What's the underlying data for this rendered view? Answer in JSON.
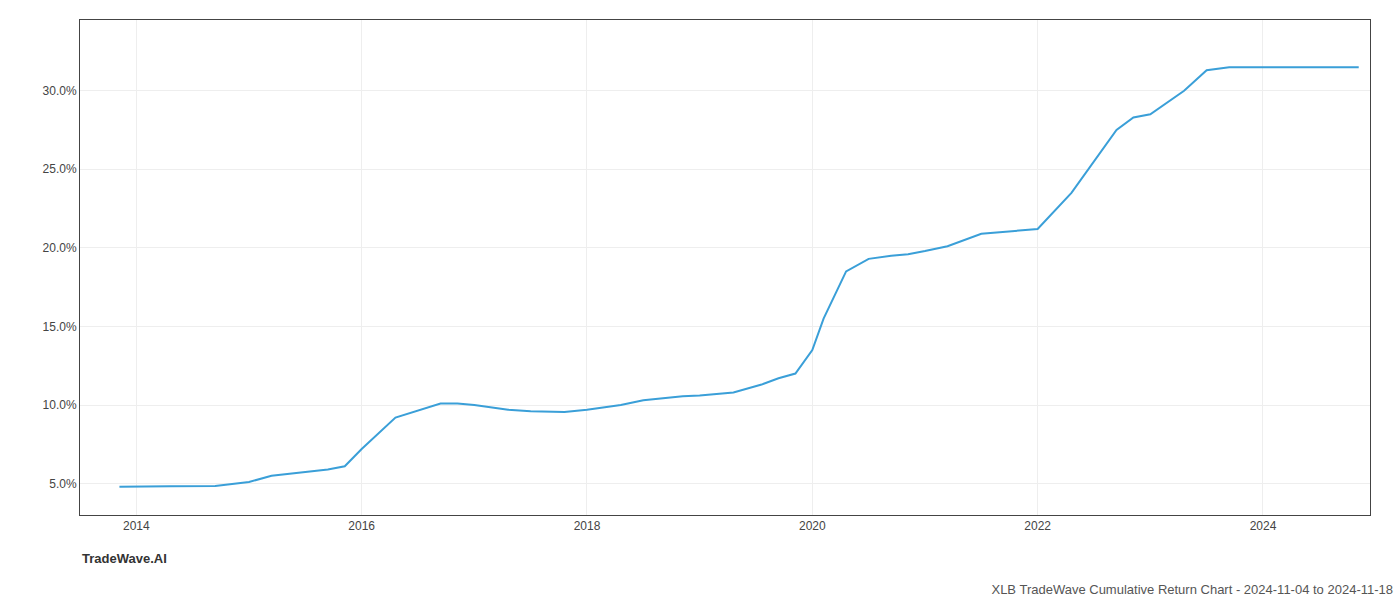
{
  "chart_data": {
    "type": "line",
    "title": "XLB TradeWave Cumulative Return Chart - 2024-11-04 to 2024-11-18",
    "annotations": [
      "TradeWave.AI"
    ],
    "color": "#3a9fd8",
    "grid": true,
    "x": [
      2013.85,
      2014.0,
      2014.3,
      2014.7,
      2015.0,
      2015.2,
      2015.7,
      2015.85,
      2016.0,
      2016.3,
      2016.7,
      2016.85,
      2017.0,
      2017.3,
      2017.5,
      2017.8,
      2018.0,
      2018.3,
      2018.5,
      2018.85,
      2019.0,
      2019.3,
      2019.55,
      2019.7,
      2019.85,
      2020.0,
      2020.1,
      2020.3,
      2020.5,
      2020.7,
      2020.85,
      2021.0,
      2021.2,
      2021.5,
      2021.85,
      2022.0,
      2022.3,
      2022.5,
      2022.7,
      2022.85,
      2023.0,
      2023.3,
      2023.5,
      2023.7,
      2023.85,
      2024.0,
      2024.5,
      2024.85
    ],
    "values": [
      4.8,
      4.82,
      4.83,
      4.85,
      5.1,
      5.5,
      5.9,
      6.1,
      7.2,
      9.2,
      10.1,
      10.1,
      10.0,
      9.7,
      9.6,
      9.55,
      9.7,
      10.0,
      10.3,
      10.55,
      10.6,
      10.8,
      11.3,
      11.7,
      12.0,
      13.5,
      15.5,
      18.5,
      19.3,
      19.5,
      19.6,
      19.8,
      20.1,
      20.9,
      21.1,
      21.2,
      23.5,
      25.5,
      27.5,
      28.3,
      28.5,
      30.0,
      31.3,
      31.5,
      31.5,
      31.5,
      31.5,
      31.5
    ],
    "xlim": [
      2013.5,
      2024.95
    ],
    "ylim": [
      3.0,
      34.5
    ],
    "xticks": [
      2014,
      2016,
      2018,
      2020,
      2022,
      2024
    ],
    "yticks": [
      {
        "value": 5.0,
        "label": "5.0%"
      },
      {
        "value": 10.0,
        "label": "10.0%"
      },
      {
        "value": 15.0,
        "label": "15.0%"
      },
      {
        "value": 20.0,
        "label": "20.0%"
      },
      {
        "value": 25.0,
        "label": "25.0%"
      },
      {
        "value": 30.0,
        "label": "30.0%"
      }
    ]
  }
}
